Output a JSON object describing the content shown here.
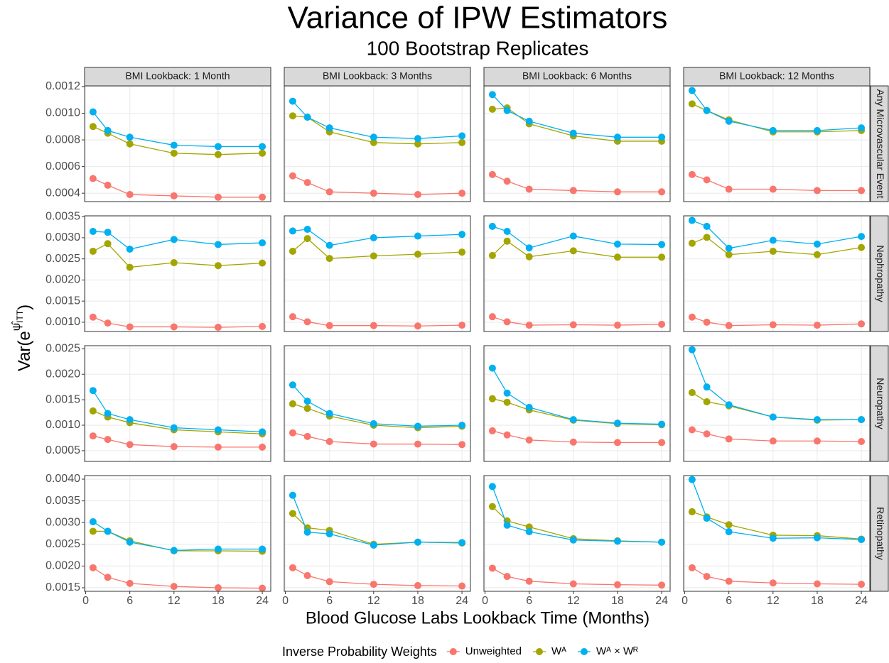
{
  "title": "Variance of IPW Estimators",
  "subtitle": "100 Bootstrap Replicates",
  "x_label": "Blood Glucose Labs Lookback Time (Months)",
  "y_label": {
    "base": "Var(e",
    "exponent": "ψ̂",
    "subscript": "ITT",
    "close": ")"
  },
  "legend": {
    "title": "Inverse Probability Weights",
    "series": [
      {
        "name": "Unweighted",
        "color": "#F8766D"
      },
      {
        "name": "Wᴬ",
        "color": "#A3A500"
      },
      {
        "name": "Wᴬ × Wᴿ",
        "color": "#00B0F0"
      }
    ]
  },
  "columns": [
    "BMI Lookback: 1 Month",
    "BMI Lookback: 3 Months",
    "BMI Lookback: 6 Months",
    "BMI Lookback: 12 Months"
  ],
  "rows": [
    {
      "label": "Any Microvascular Event",
      "ylim": [
        0.000337,
        0.001205
      ],
      "yticks": [
        0.0004,
        0.0006,
        0.0008,
        {
          "value": 0.001,
          "label": "0.0010"
        },
        0.0012
      ]
    },
    {
      "label": "Nephropathy",
      "ylim": [
        0.00078,
        0.00352
      ],
      "yticks": [
        {
          "value": 0.001,
          "label": "0.0010"
        },
        0.0015,
        {
          "value": 0.002,
          "label": "0.0020"
        },
        0.0025,
        {
          "value": 0.003,
          "label": "0.0030"
        },
        0.0035
      ]
    },
    {
      "label": "Neuropathy",
      "ylim": [
        0.00029,
        0.00256
      ],
      "yticks": [
        0.0005,
        {
          "value": 0.001,
          "label": "0.0010"
        },
        0.0015,
        {
          "value": 0.002,
          "label": "0.0020"
        },
        0.0025
      ]
    },
    {
      "label": "Retinopathy",
      "ylim": [
        0.001418,
        0.004082
      ],
      "yticks": [
        0.0015,
        {
          "value": 0.002,
          "label": "0.0020"
        },
        0.0025,
        {
          "value": 0.003,
          "label": "0.0030"
        },
        0.0035,
        {
          "value": 0.004,
          "label": "0.0040"
        }
      ]
    }
  ],
  "x": [
    1,
    3,
    6,
    12,
    18,
    24
  ],
  "xlim": [
    -0.15,
    25.15
  ],
  "xticks": [
    0,
    6,
    12,
    18,
    24
  ],
  "chart_data": [
    {
      "type": "line",
      "series": [
        {
          "values": [
            0.00051,
            0.00046,
            0.00039,
            0.00038,
            0.00037,
            0.00037
          ]
        },
        {
          "values": [
            0.0009,
            0.00085,
            0.00077,
            0.0007,
            0.00069,
            0.0007
          ]
        },
        {
          "values": [
            0.00101,
            0.00087,
            0.00082,
            0.00076,
            0.00075,
            0.00075
          ]
        }
      ]
    },
    {
      "type": "line",
      "series": [
        {
          "values": [
            0.00053,
            0.00048,
            0.00041,
            0.0004,
            0.00039,
            0.0004
          ]
        },
        {
          "values": [
            0.00098,
            0.00097,
            0.00086,
            0.00078,
            0.00077,
            0.00078
          ]
        },
        {
          "values": [
            0.00109,
            0.00097,
            0.00089,
            0.00082,
            0.00081,
            0.00083
          ]
        }
      ]
    },
    {
      "type": "line",
      "series": [
        {
          "values": [
            0.00054,
            0.00049,
            0.00043,
            0.00042,
            0.00041,
            0.00041
          ]
        },
        {
          "values": [
            0.00103,
            0.00104,
            0.00092,
            0.00083,
            0.00079,
            0.00079
          ]
        },
        {
          "values": [
            0.00114,
            0.00102,
            0.00094,
            0.00085,
            0.00082,
            0.00082
          ]
        }
      ]
    },
    {
      "type": "line",
      "series": [
        {
          "values": [
            0.00054,
            0.0005,
            0.00043,
            0.00043,
            0.00042,
            0.00042
          ]
        },
        {
          "values": [
            0.00107,
            0.00102,
            0.00095,
            0.00086,
            0.00086,
            0.00087
          ]
        },
        {
          "values": [
            0.00117,
            0.00102,
            0.00094,
            0.00087,
            0.00087,
            0.00089
          ]
        }
      ]
    },
    {
      "type": "line",
      "series": [
        {
          "values": [
            0.00112,
            0.00098,
            0.00089,
            0.00089,
            0.00088,
            0.0009
          ]
        },
        {
          "values": [
            0.00268,
            0.00286,
            0.0023,
            0.00241,
            0.00234,
            0.0024
          ]
        },
        {
          "values": [
            0.00315,
            0.00313,
            0.00273,
            0.00296,
            0.00284,
            0.00288
          ]
        }
      ]
    },
    {
      "type": "line",
      "series": [
        {
          "values": [
            0.00113,
            0.00101,
            0.00092,
            0.00092,
            0.00091,
            0.00093
          ]
        },
        {
          "values": [
            0.00268,
            0.00298,
            0.00251,
            0.00257,
            0.00261,
            0.00266
          ]
        },
        {
          "values": [
            0.00316,
            0.0032,
            0.00282,
            0.003,
            0.00304,
            0.00308
          ]
        }
      ]
    },
    {
      "type": "line",
      "series": [
        {
          "values": [
            0.00113,
            0.00101,
            0.00093,
            0.00094,
            0.00093,
            0.00095
          ]
        },
        {
          "values": [
            0.00258,
            0.00292,
            0.00255,
            0.00269,
            0.00254,
            0.00254
          ]
        },
        {
          "values": [
            0.00327,
            0.00315,
            0.00276,
            0.00304,
            0.00285,
            0.00284
          ]
        }
      ]
    },
    {
      "type": "line",
      "series": [
        {
          "values": [
            0.00112,
            0.001,
            0.00092,
            0.00094,
            0.00093,
            0.00096
          ]
        },
        {
          "values": [
            0.00287,
            0.00301,
            0.0026,
            0.00268,
            0.0026,
            0.00277
          ]
        },
        {
          "values": [
            0.00341,
            0.00327,
            0.00275,
            0.00294,
            0.00285,
            0.00303
          ]
        }
      ]
    },
    {
      "type": "line",
      "series": [
        {
          "values": [
            0.00079,
            0.00072,
            0.00062,
            0.00058,
            0.00057,
            0.00057
          ]
        },
        {
          "values": [
            0.00128,
            0.00116,
            0.00105,
            0.00091,
            0.00087,
            0.00083
          ]
        },
        {
          "values": [
            0.00168,
            0.00123,
            0.00111,
            0.00095,
            0.00091,
            0.00087
          ]
        }
      ]
    },
    {
      "type": "line",
      "series": [
        {
          "values": [
            0.00085,
            0.00078,
            0.00068,
            0.00063,
            0.00063,
            0.00062
          ]
        },
        {
          "values": [
            0.00142,
            0.00133,
            0.00118,
            0.001,
            0.00095,
            0.00098
          ]
        },
        {
          "values": [
            0.00179,
            0.00147,
            0.00123,
            0.00103,
            0.00098,
            0.001
          ]
        }
      ]
    },
    {
      "type": "line",
      "series": [
        {
          "values": [
            0.00089,
            0.00081,
            0.00071,
            0.00067,
            0.00066,
            0.00066
          ]
        },
        {
          "values": [
            0.00152,
            0.00145,
            0.0013,
            0.0011,
            0.00103,
            0.00101
          ]
        },
        {
          "values": [
            0.00212,
            0.00163,
            0.00135,
            0.00111,
            0.00104,
            0.00102
          ]
        }
      ]
    },
    {
      "type": "line",
      "series": [
        {
          "values": [
            0.00091,
            0.00083,
            0.00073,
            0.00069,
            0.00069,
            0.00068
          ]
        },
        {
          "values": [
            0.00164,
            0.00146,
            0.00138,
            0.00116,
            0.0011,
            0.00111
          ]
        },
        {
          "values": [
            0.00248,
            0.00175,
            0.0014,
            0.00116,
            0.00111,
            0.00111
          ]
        }
      ]
    },
    {
      "type": "line",
      "series": [
        {
          "values": [
            0.00196,
            0.00174,
            0.0016,
            0.00153,
            0.0015,
            0.00149
          ]
        },
        {
          "values": [
            0.0028,
            0.0028,
            0.00258,
            0.00235,
            0.00235,
            0.00234
          ]
        },
        {
          "values": [
            0.00302,
            0.0028,
            0.00255,
            0.00236,
            0.00239,
            0.00239
          ]
        }
      ]
    },
    {
      "type": "line",
      "series": [
        {
          "values": [
            0.00196,
            0.00178,
            0.00164,
            0.00158,
            0.00155,
            0.00154
          ]
        },
        {
          "values": [
            0.00321,
            0.00288,
            0.00282,
            0.0025,
            0.00255,
            0.00253
          ]
        },
        {
          "values": [
            0.00363,
            0.00278,
            0.00274,
            0.00248,
            0.00255,
            0.00254
          ]
        }
      ]
    },
    {
      "type": "line",
      "series": [
        {
          "values": [
            0.00195,
            0.00176,
            0.00165,
            0.00159,
            0.00157,
            0.00156
          ]
        },
        {
          "values": [
            0.00337,
            0.00304,
            0.0029,
            0.00263,
            0.00258,
            0.00255
          ]
        },
        {
          "values": [
            0.00383,
            0.00294,
            0.00279,
            0.0026,
            0.00257,
            0.00255
          ]
        }
      ]
    },
    {
      "type": "line",
      "series": [
        {
          "values": [
            0.00196,
            0.00176,
            0.00165,
            0.00161,
            0.00159,
            0.00158
          ]
        },
        {
          "values": [
            0.00325,
            0.00313,
            0.00295,
            0.00271,
            0.0027,
            0.00262
          ]
        },
        {
          "values": [
            0.00399,
            0.0031,
            0.00279,
            0.00264,
            0.00265,
            0.00261
          ]
        }
      ]
    }
  ]
}
